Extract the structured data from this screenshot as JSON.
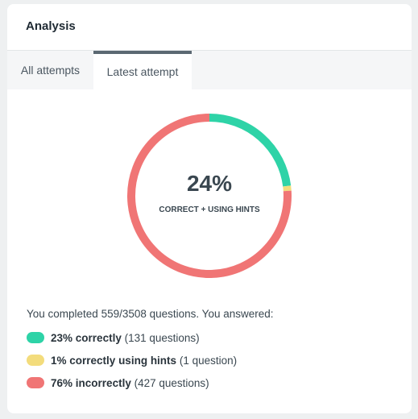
{
  "header": {
    "title": "Analysis"
  },
  "tabs": [
    "All attempts",
    "Latest attempt"
  ],
  "active_tab": 1,
  "chart_data": {
    "type": "donut",
    "center_label": "24%",
    "center_caption": "CORRECT + USING HINTS",
    "categories": [
      "correctly",
      "correctly using hints",
      "incorrectly"
    ],
    "values": [
      23,
      1,
      76
    ],
    "value_labels": [
      "23%",
      "1%",
      "76%"
    ],
    "colors": [
      "#2ed3a7",
      "#f3dc7c",
      "#f07575"
    ]
  },
  "summary": "You completed 559/3508 questions. You answered:",
  "details": [
    "(131 questions)",
    "(1 question)",
    "(427 questions)"
  ]
}
